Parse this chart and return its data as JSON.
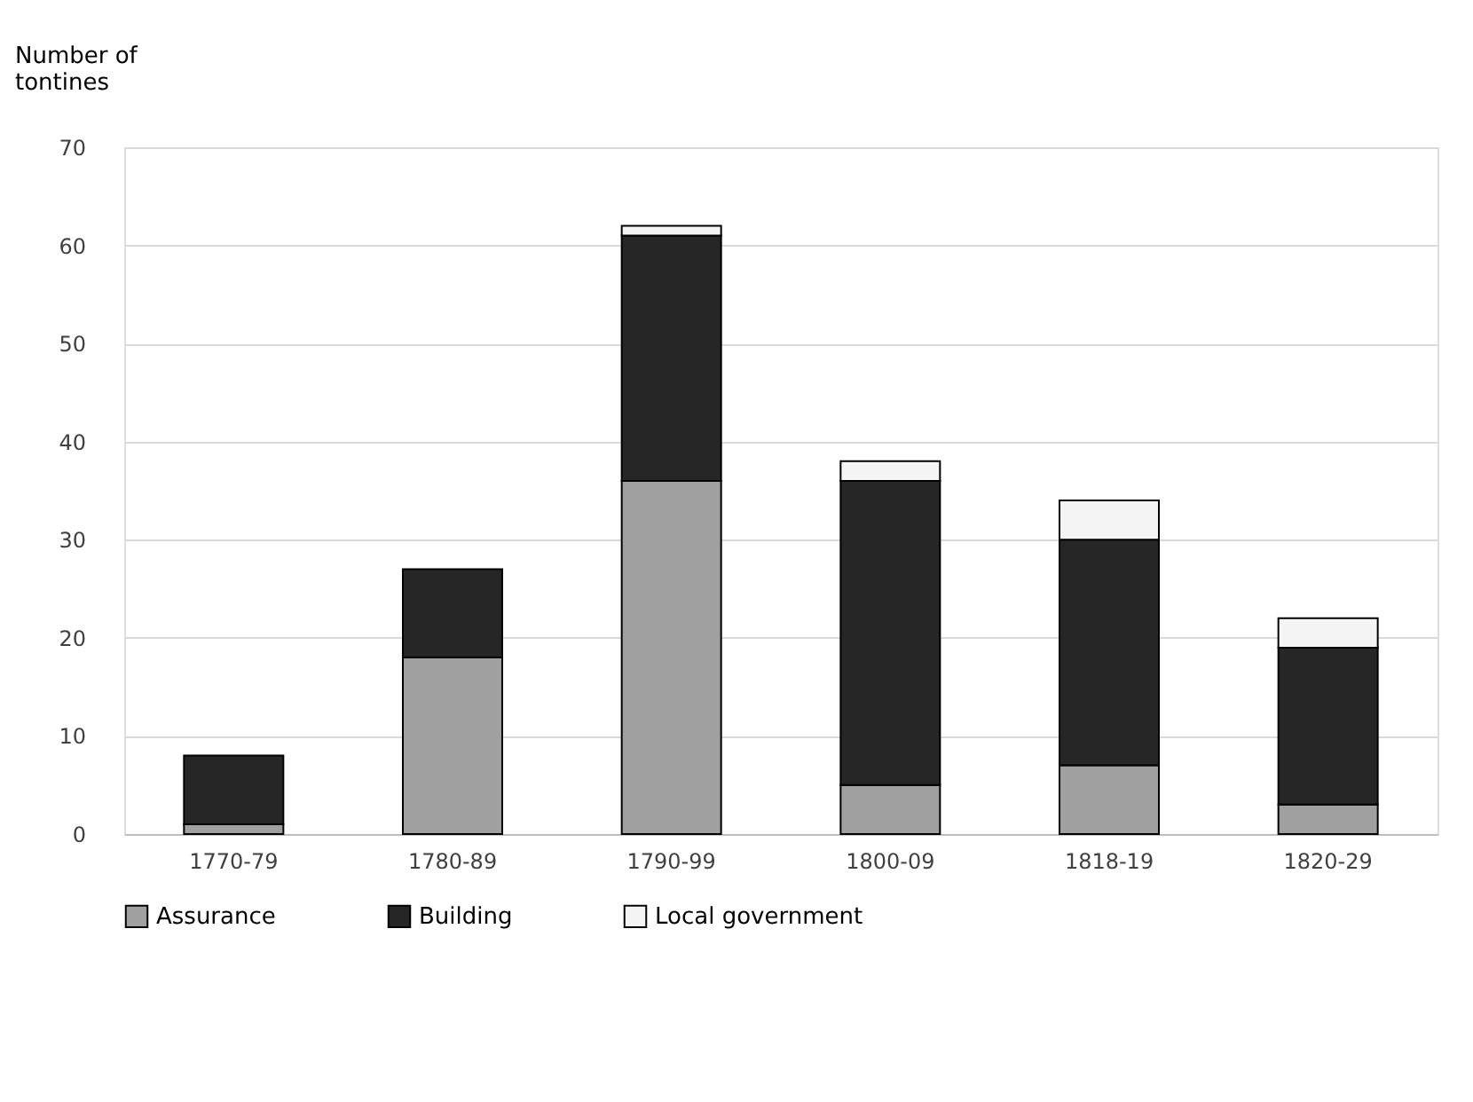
{
  "chart_data": {
    "type": "bar",
    "stacked": true,
    "ylabel": "Number of tontines",
    "categories": [
      "1770-79",
      "1780-89",
      "1790-99",
      "1800-09",
      "1818-19",
      "1820-29"
    ],
    "series": [
      {
        "name": "Assurance",
        "color": "#a0a0a0",
        "values": [
          1,
          18,
          36,
          5,
          7,
          3
        ]
      },
      {
        "name": "Building",
        "color": "#262626",
        "values": [
          7,
          9,
          25,
          31,
          23,
          16
        ]
      },
      {
        "name": "Local government",
        "color": "#f4f4f4",
        "values": [
          0,
          0,
          1,
          2,
          4,
          3
        ]
      }
    ],
    "ylim": [
      0,
      70
    ],
    "yticks": [
      0,
      10,
      20,
      30,
      40,
      50,
      60,
      70
    ],
    "grid": "y",
    "legend": "bottom"
  }
}
